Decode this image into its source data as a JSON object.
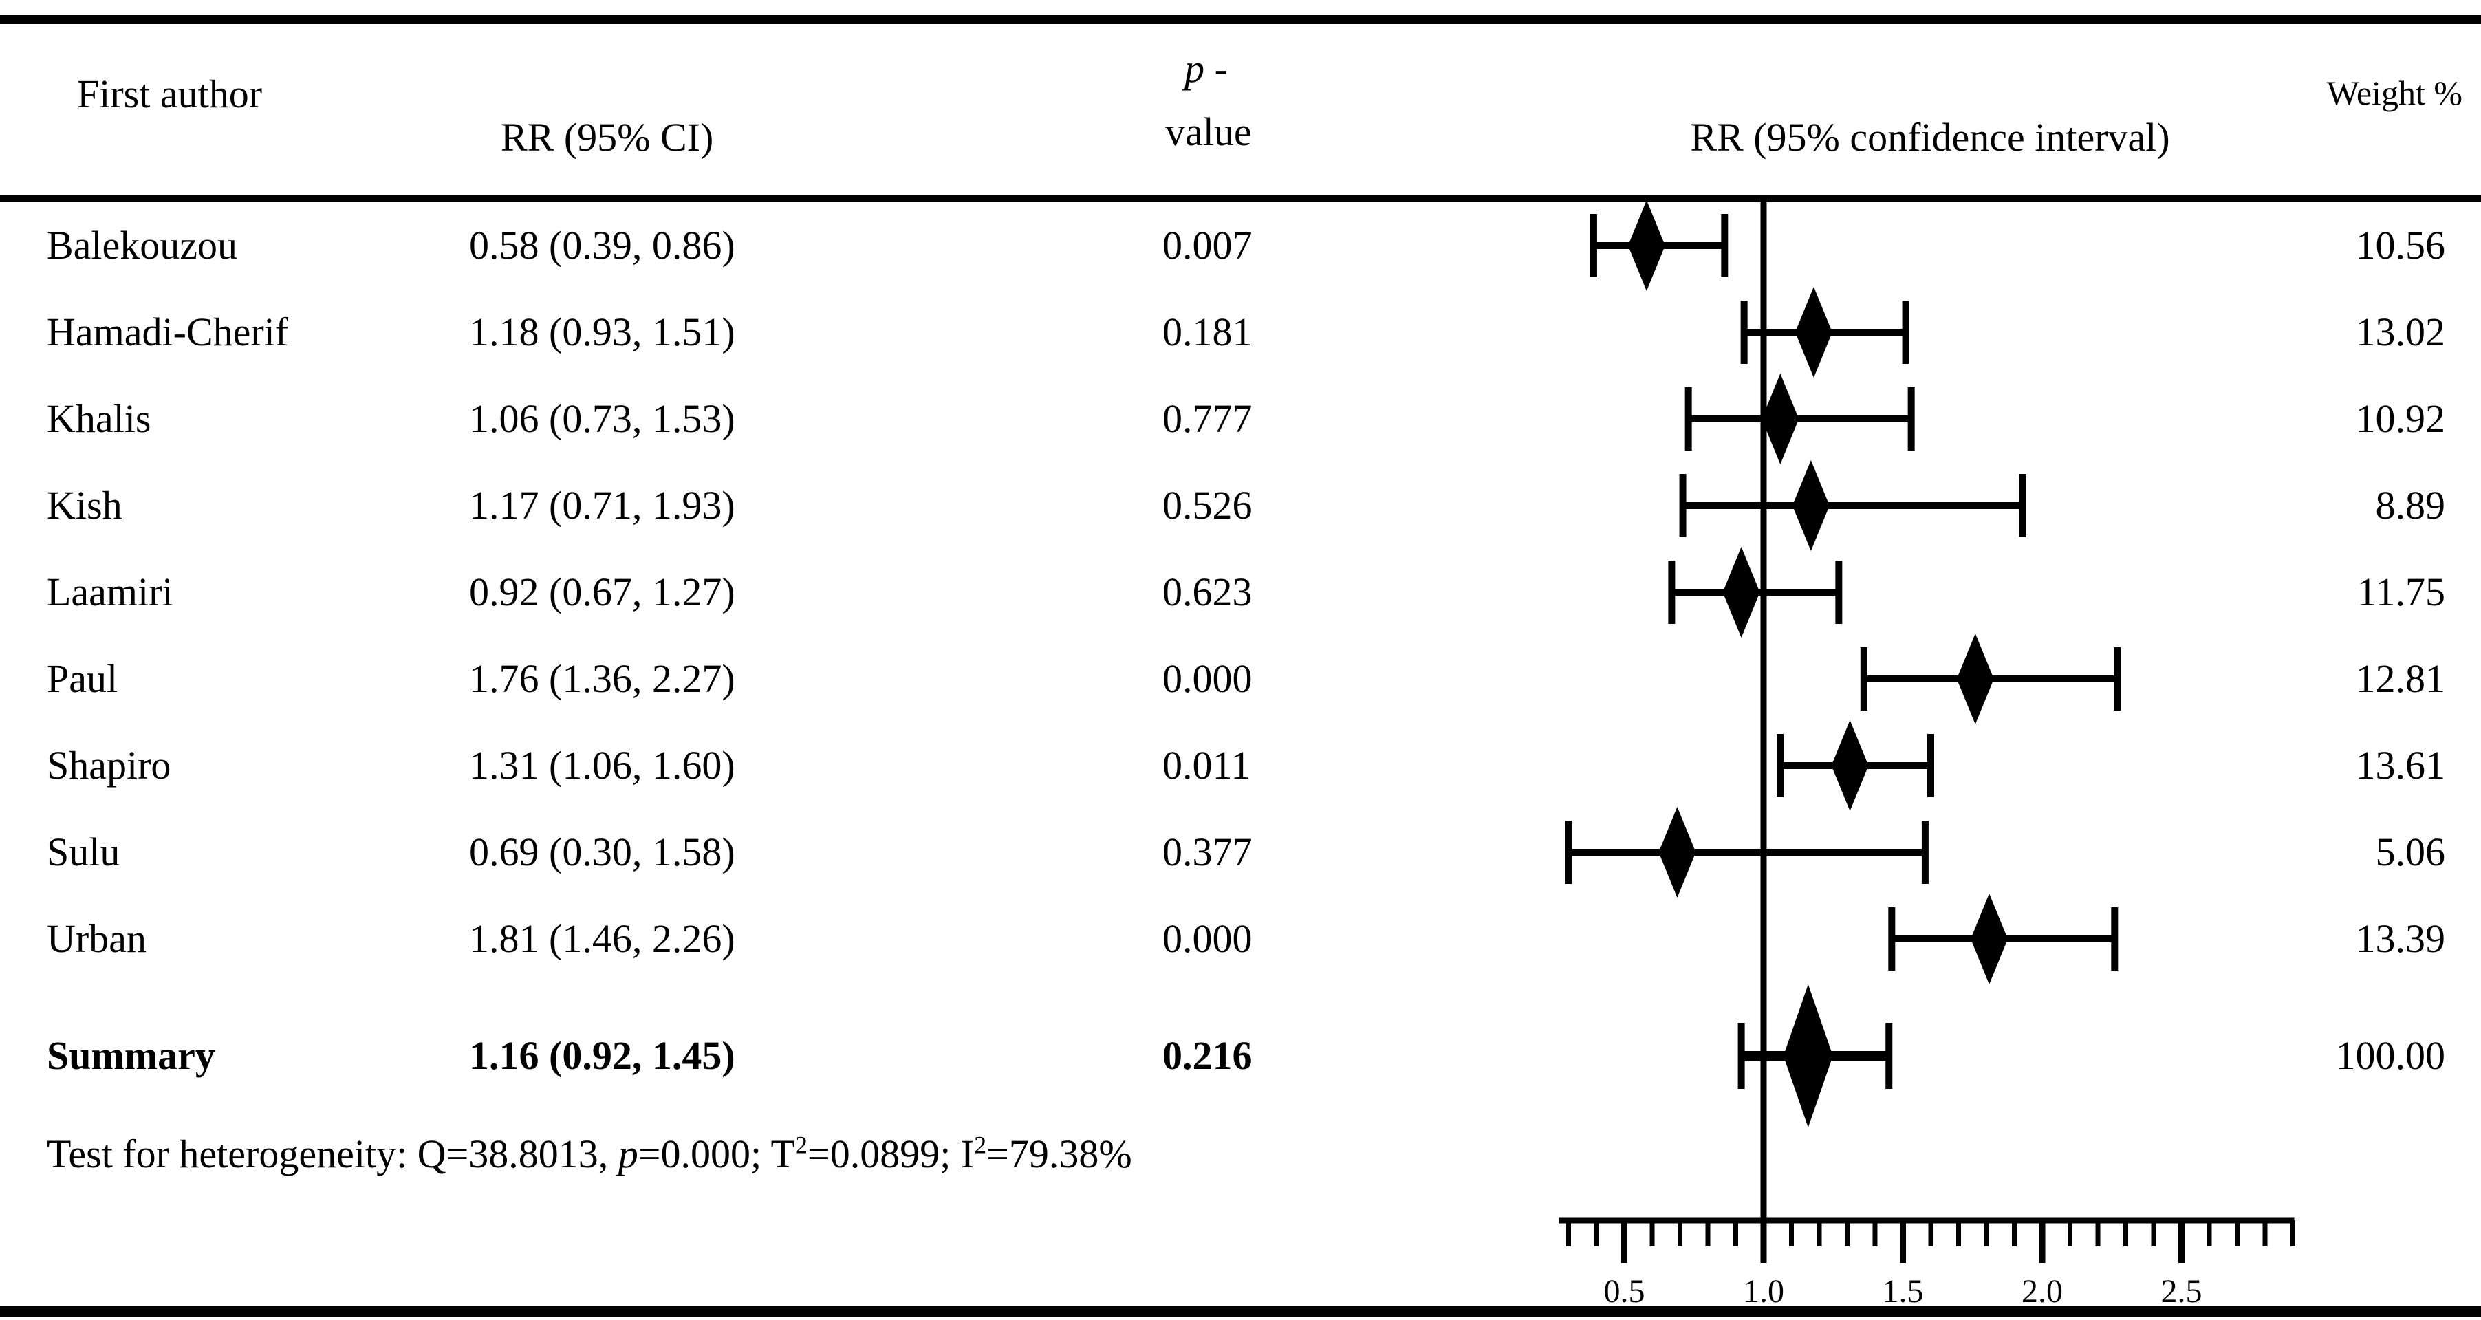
{
  "table": {
    "headers": {
      "first_author": "First author",
      "rr_ci": "RR (95% CI)",
      "p_line1_italic": "p",
      "p_line1_rest": " -",
      "p_line2": "value",
      "plot": "RR (95% confidence interval)",
      "weight": "Weight %"
    }
  },
  "heterogeneity": {
    "prefix": "Test for heterogeneity: Q=38.8013, ",
    "p_italic": "p",
    "after_p": "=0.000; T",
    "t_sup": "2",
    "after_t": "=0.0899; I",
    "i_sup": "2",
    "after_i": "=79.38%"
  },
  "chart_data": {
    "type": "forest",
    "title": "",
    "xlabel": "",
    "x_axis": {
      "range": [
        0.265,
        2.905
      ],
      "major_ticks": [
        0.5,
        1.0,
        1.5,
        2.0,
        2.5
      ],
      "tick_labels": [
        "0.5",
        "1.0",
        "1.5",
        "2.0",
        "2.5"
      ],
      "minor_tick_start": 0.3,
      "minor_tick_step": 0.1,
      "minor_tick_end": 2.9,
      "reference_line": 1.0,
      "grid": false
    },
    "studies": [
      {
        "name": "Balekouzou",
        "rr": 0.58,
        "ci_low": 0.39,
        "ci_high": 0.86,
        "rr_ci_text": "0.58 (0.39, 0.86)",
        "p_text": "0.007",
        "weight": 10.56,
        "weight_text": "10.56"
      },
      {
        "name": "Hamadi-Cherif",
        "rr": 1.18,
        "ci_low": 0.93,
        "ci_high": 1.51,
        "rr_ci_text": "1.18 (0.93, 1.51)",
        "p_text": "0.181",
        "weight": 13.02,
        "weight_text": "13.02"
      },
      {
        "name": "Khalis",
        "rr": 1.06,
        "ci_low": 0.73,
        "ci_high": 1.53,
        "rr_ci_text": "1.06 (0.73, 1.53)",
        "p_text": "0.777",
        "weight": 10.92,
        "weight_text": "10.92"
      },
      {
        "name": "Kish",
        "rr": 1.17,
        "ci_low": 0.71,
        "ci_high": 1.93,
        "rr_ci_text": "1.17 (0.71, 1.93)",
        "p_text": "0.526",
        "weight": 8.89,
        "weight_text": "8.89"
      },
      {
        "name": "Laamiri",
        "rr": 0.92,
        "ci_low": 0.67,
        "ci_high": 1.27,
        "rr_ci_text": "0.92 (0.67, 1.27)",
        "p_text": "0.623",
        "weight": 11.75,
        "weight_text": "11.75"
      },
      {
        "name": "Paul",
        "rr": 1.76,
        "ci_low": 1.36,
        "ci_high": 2.27,
        "rr_ci_text": "1.76 (1.36, 2.27)",
        "p_text": "0.000",
        "weight": 12.81,
        "weight_text": "12.81"
      },
      {
        "name": "Shapiro",
        "rr": 1.31,
        "ci_low": 1.06,
        "ci_high": 1.6,
        "rr_ci_text": "1.31 (1.06, 1.60)",
        "p_text": "0.011",
        "weight": 13.61,
        "weight_text": "13.61"
      },
      {
        "name": "Sulu",
        "rr": 0.69,
        "ci_low": 0.3,
        "ci_high": 1.58,
        "rr_ci_text": "0.69 (0.30, 1.58)",
        "p_text": "0.377",
        "weight": 5.06,
        "weight_text": "5.06"
      },
      {
        "name": "Urban",
        "rr": 1.81,
        "ci_low": 1.46,
        "ci_high": 2.26,
        "rr_ci_text": "1.81 (1.46, 2.26)",
        "p_text": "0.000",
        "weight": 13.39,
        "weight_text": "13.39"
      }
    ],
    "summary": {
      "name": "Summary",
      "rr": 1.16,
      "ci_low": 0.92,
      "ci_high": 1.45,
      "rr_ci_text": "1.16 (0.92, 1.45)",
      "p_text": "0.216",
      "weight": 100.0,
      "weight_text": "100.00"
    },
    "heterogeneity_text": "Test for heterogeneity: Q=38.8013, p=0.000; T2=0.0899; I2=79.38%",
    "legend": "none"
  },
  "colors": {
    "ink": "#000000",
    "background": "#ffffff"
  }
}
